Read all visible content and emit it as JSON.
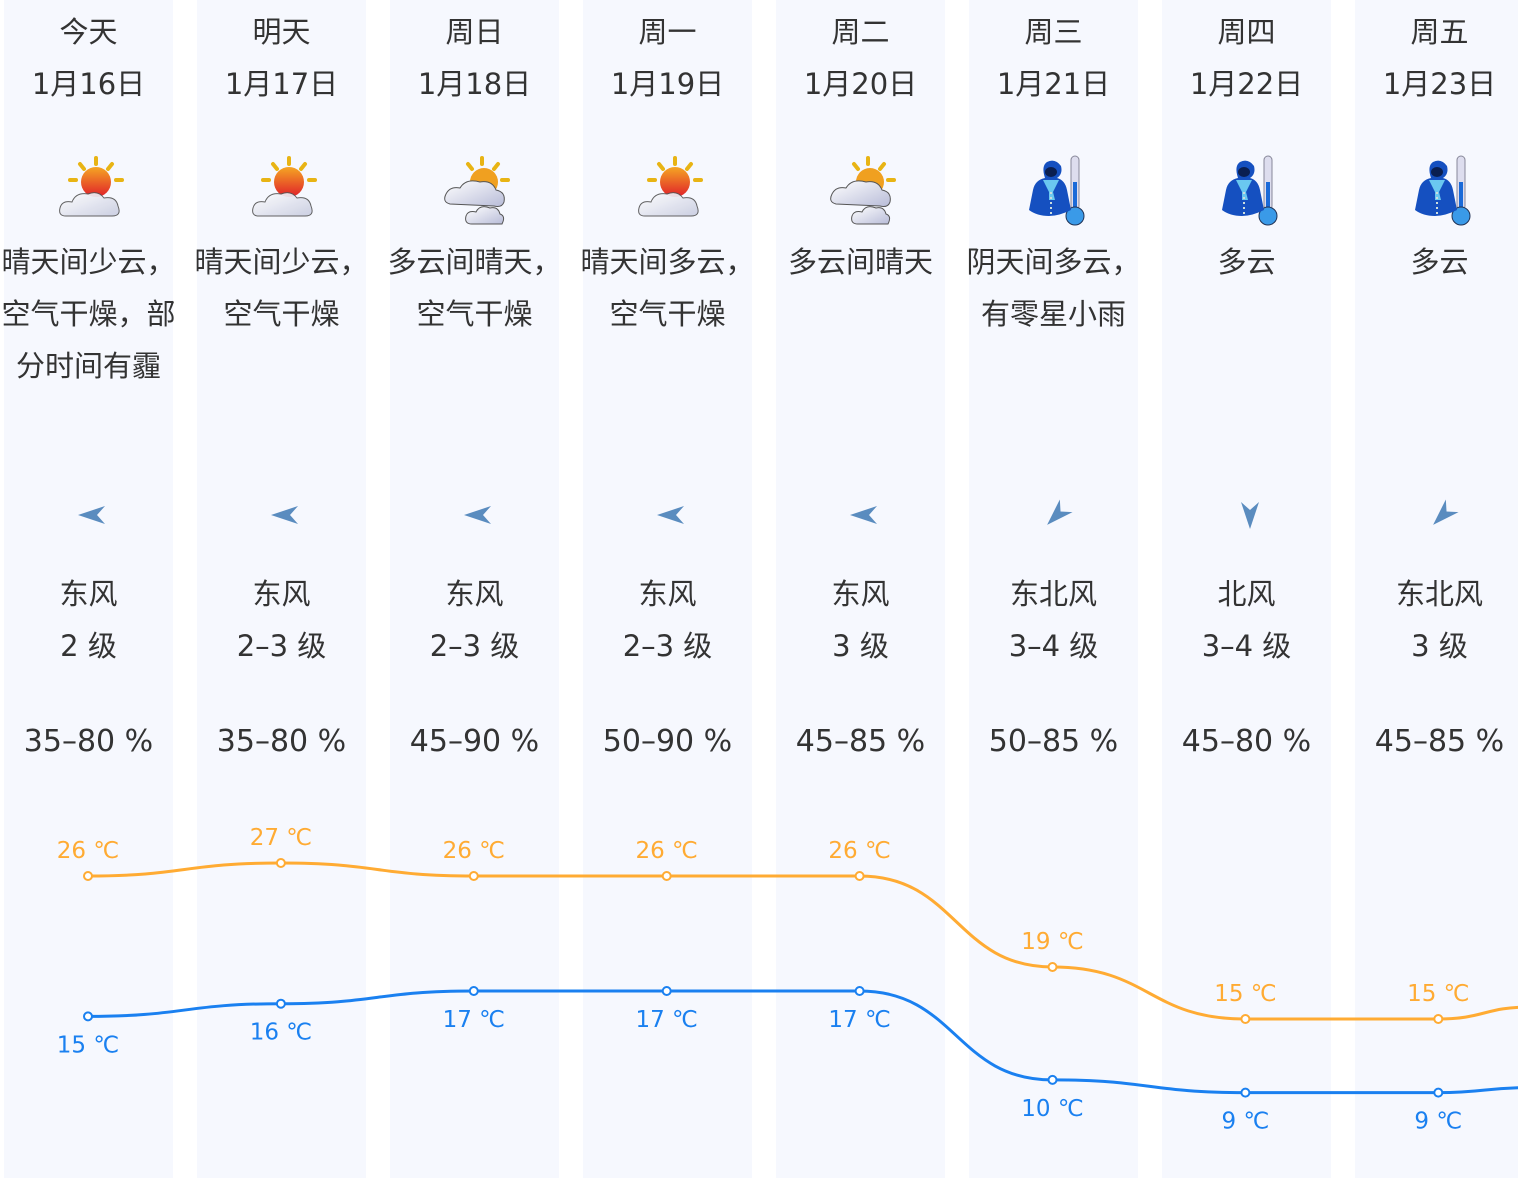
{
  "days": [
    {
      "weekday": "今天",
      "date": "1月16日",
      "icon": "sun-behind-cloud-icon",
      "desc": "晴天间少云，空气干燥，部分时间有霾",
      "wind_dir": "东风",
      "wind_level": "2 级",
      "humidity": "35–80 %",
      "high": "26 ℃",
      "low": "15 ℃"
    },
    {
      "weekday": "明天",
      "date": "1月17日",
      "icon": "sun-behind-cloud-icon",
      "desc": "晴天间少云，空气干燥",
      "wind_dir": "东风",
      "wind_level": "2–3 级",
      "humidity": "35–80 %",
      "high": "27 ℃",
      "low": "16 ℃"
    },
    {
      "weekday": "周日",
      "date": "1月18日",
      "icon": "cloudy-with-sun-icon",
      "desc": "多云间晴天，空气干燥",
      "wind_dir": "东风",
      "wind_level": "2–3 级",
      "humidity": "45–90 %",
      "high": "26 ℃",
      "low": "17 ℃"
    },
    {
      "weekday": "周一",
      "date": "1月19日",
      "icon": "sun-behind-cloud-icon",
      "desc": "晴天间多云，空气干燥",
      "wind_dir": "东风",
      "wind_level": "2–3 级",
      "humidity": "50–90 %",
      "high": "26 ℃",
      "low": "17 ℃"
    },
    {
      "weekday": "周二",
      "date": "1月20日",
      "icon": "cloudy-with-sun-icon",
      "desc": "多云间晴天",
      "wind_dir": "东风",
      "wind_level": "3 级",
      "humidity": "45–85 %",
      "high": "26 ℃",
      "low": "17 ℃"
    },
    {
      "weekday": "周三",
      "date": "1月21日",
      "icon": "cold-coat-thermometer-icon",
      "desc": "阴天间多云，有零星小雨",
      "wind_dir": "东北风",
      "wind_level": "3–4 级",
      "humidity": "50–85 %",
      "high": "19 ℃",
      "low": "10 ℃"
    },
    {
      "weekday": "周四",
      "date": "1月22日",
      "icon": "cold-coat-thermometer-icon",
      "desc": "多云",
      "wind_dir": "北风",
      "wind_level": "3–4 级",
      "humidity": "45–80 %",
      "high": "15 ℃",
      "low": "9 ℃"
    },
    {
      "weekday": "周五",
      "date": "1月23日",
      "icon": "cold-coat-thermometer-icon",
      "desc": "多云",
      "wind_dir": "东北风",
      "wind_level": "3 级",
      "humidity": "45–85 %",
      "high": "15 ℃",
      "low": "9 ℃"
    }
  ],
  "chart_data": {
    "type": "line",
    "categories": [
      "1月16日",
      "1月17日",
      "1月18日",
      "1月19日",
      "1月20日",
      "1月21日",
      "1月22日",
      "1月23日"
    ],
    "series": [
      {
        "values": [
          26,
          27,
          26,
          26,
          26,
          19,
          15,
          15
        ],
        "color": "#ffab33"
      },
      {
        "values": [
          15,
          16,
          17,
          17,
          17,
          10,
          9,
          9
        ],
        "color": "#1a80f0"
      }
    ],
    "unit": "℃"
  },
  "colors": {
    "column_bg": "#f6f8fe",
    "high": "#ffab33",
    "low": "#1a80f0",
    "arrow": "#5a8cbf",
    "text": "#333333"
  }
}
